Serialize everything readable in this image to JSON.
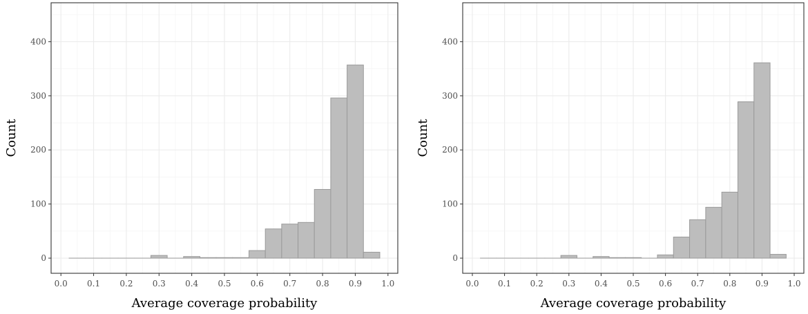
{
  "colors": {
    "bar_fill": "#bdbdbd",
    "bar_stroke": "#9a9a9a",
    "grid_major": "#ebebeb",
    "grid_minor": "#f5f5f5",
    "panel_border": "#333333"
  },
  "chart_data": [
    {
      "type": "bar",
      "title": "",
      "xlabel": "Average coverage probability",
      "ylabel": "Count",
      "xlim": [
        -0.03,
        1.03
      ],
      "ylim": [
        -28,
        472
      ],
      "xticks": [
        0.0,
        0.1,
        0.2,
        0.3,
        0.4,
        0.5,
        0.6,
        0.7,
        0.8,
        0.9,
        1.0
      ],
      "xtick_labels": [
        "0.0",
        "0.1",
        "0.2",
        "0.3",
        "0.4",
        "0.5",
        "0.6",
        "0.7",
        "0.8",
        "0.9",
        "1.0"
      ],
      "yticks": [
        0,
        100,
        200,
        300,
        400
      ],
      "ytick_labels": [
        "0",
        "100",
        "200",
        "300",
        "400"
      ],
      "grid": true,
      "bin_width": 0.05,
      "bin_centers": [
        0.05,
        0.1,
        0.15,
        0.2,
        0.25,
        0.3,
        0.35,
        0.4,
        0.45,
        0.5,
        0.55,
        0.6,
        0.65,
        0.7,
        0.75,
        0.8,
        0.85,
        0.9,
        0.95
      ],
      "values": [
        0,
        0,
        0,
        0,
        0,
        5,
        0,
        3,
        1,
        1,
        1,
        14,
        54,
        63,
        66,
        127,
        296,
        357,
        11
      ]
    },
    {
      "type": "bar",
      "title": "",
      "xlabel": "Average coverage probability",
      "ylabel": "Count",
      "xlim": [
        -0.03,
        1.03
      ],
      "ylim": [
        -28,
        472
      ],
      "xticks": [
        0.0,
        0.1,
        0.2,
        0.3,
        0.4,
        0.5,
        0.6,
        0.7,
        0.8,
        0.9,
        1.0
      ],
      "xtick_labels": [
        "0.0",
        "0.1",
        "0.2",
        "0.3",
        "0.4",
        "0.5",
        "0.6",
        "0.7",
        "0.8",
        "0.9",
        "1.0"
      ],
      "yticks": [
        0,
        100,
        200,
        300,
        400
      ],
      "ytick_labels": [
        "0",
        "100",
        "200",
        "300",
        "400"
      ],
      "grid": true,
      "bin_width": 0.05,
      "bin_centers": [
        0.05,
        0.1,
        0.15,
        0.2,
        0.25,
        0.3,
        0.35,
        0.4,
        0.45,
        0.5,
        0.55,
        0.6,
        0.65,
        0.7,
        0.75,
        0.8,
        0.85,
        0.9,
        0.95
      ],
      "values": [
        0,
        0,
        0,
        0,
        0,
        5,
        0,
        3,
        1,
        1,
        0,
        6,
        39,
        71,
        94,
        122,
        289,
        361,
        7
      ]
    }
  ]
}
